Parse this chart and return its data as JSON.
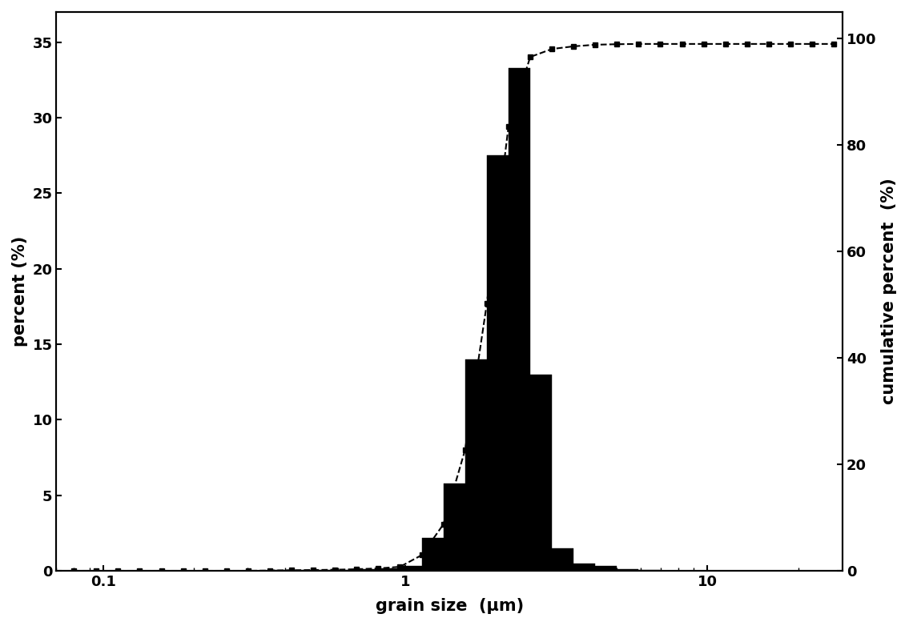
{
  "xlabel": "grain size  (μm)",
  "ylabel_left": "percent (%)",
  "ylabel_right": "cumulative percent  (%)",
  "xlim": [
    0.07,
    28
  ],
  "ylim_left": [
    0,
    37
  ],
  "ylim_right": [
    0,
    105
  ],
  "yticks_left": [
    0,
    5,
    10,
    15,
    20,
    25,
    30,
    35
  ],
  "yticks_right": [
    0,
    20,
    40,
    60,
    80,
    100
  ],
  "xticks": [
    0.1,
    1,
    10
  ],
  "xtick_labels": [
    "0.1",
    "1",
    "10"
  ],
  "background_color": "#ffffff",
  "bar_color": "#000000",
  "line_color": "#000000",
  "hist_bin_edges": [
    0.08,
    0.095,
    0.112,
    0.132,
    0.156,
    0.184,
    0.217,
    0.256,
    0.302,
    0.356,
    0.42,
    0.496,
    0.585,
    0.69,
    0.814,
    0.96,
    1.133,
    1.337,
    1.577,
    1.861,
    2.195,
    2.59,
    3.055,
    3.604,
    4.252,
    5.015,
    5.916,
    6.979,
    8.233,
    9.714,
    11.46,
    13.52,
    15.95,
    18.81,
    22.19,
    26.18
  ],
  "hist_values": [
    0.0,
    0.0,
    0.0,
    0.0,
    0.0,
    0.0,
    0.0,
    0.0,
    0.0,
    0.05,
    0.05,
    0.05,
    0.05,
    0.1,
    0.15,
    0.3,
    2.2,
    5.8,
    14.0,
    27.5,
    33.3,
    13.0,
    1.5,
    0.5,
    0.3,
    0.1,
    0.05,
    0.0,
    0.0,
    0.0,
    0.0,
    0.0,
    0.0,
    0.0,
    0.0
  ],
  "cumulative_x": [
    0.08,
    0.095,
    0.112,
    0.132,
    0.156,
    0.184,
    0.217,
    0.256,
    0.302,
    0.356,
    0.42,
    0.496,
    0.585,
    0.69,
    0.814,
    0.96,
    1.133,
    1.337,
    1.577,
    1.861,
    2.195,
    2.59,
    3.055,
    3.604,
    4.252,
    5.015,
    5.916,
    6.979,
    8.233,
    9.714,
    11.46,
    13.52,
    15.95,
    18.81,
    22.19,
    26.18
  ],
  "cumulative_y": [
    0.0,
    0.0,
    0.0,
    0.0,
    0.0,
    0.0,
    0.0,
    0.0,
    0.0,
    0.05,
    0.1,
    0.15,
    0.2,
    0.3,
    0.45,
    0.75,
    2.95,
    8.75,
    22.75,
    50.25,
    83.55,
    96.55,
    98.05,
    98.55,
    98.85,
    98.95,
    99.0,
    99.0,
    99.0,
    99.0,
    99.0,
    99.0,
    99.0,
    99.0,
    99.0,
    99.0
  ]
}
